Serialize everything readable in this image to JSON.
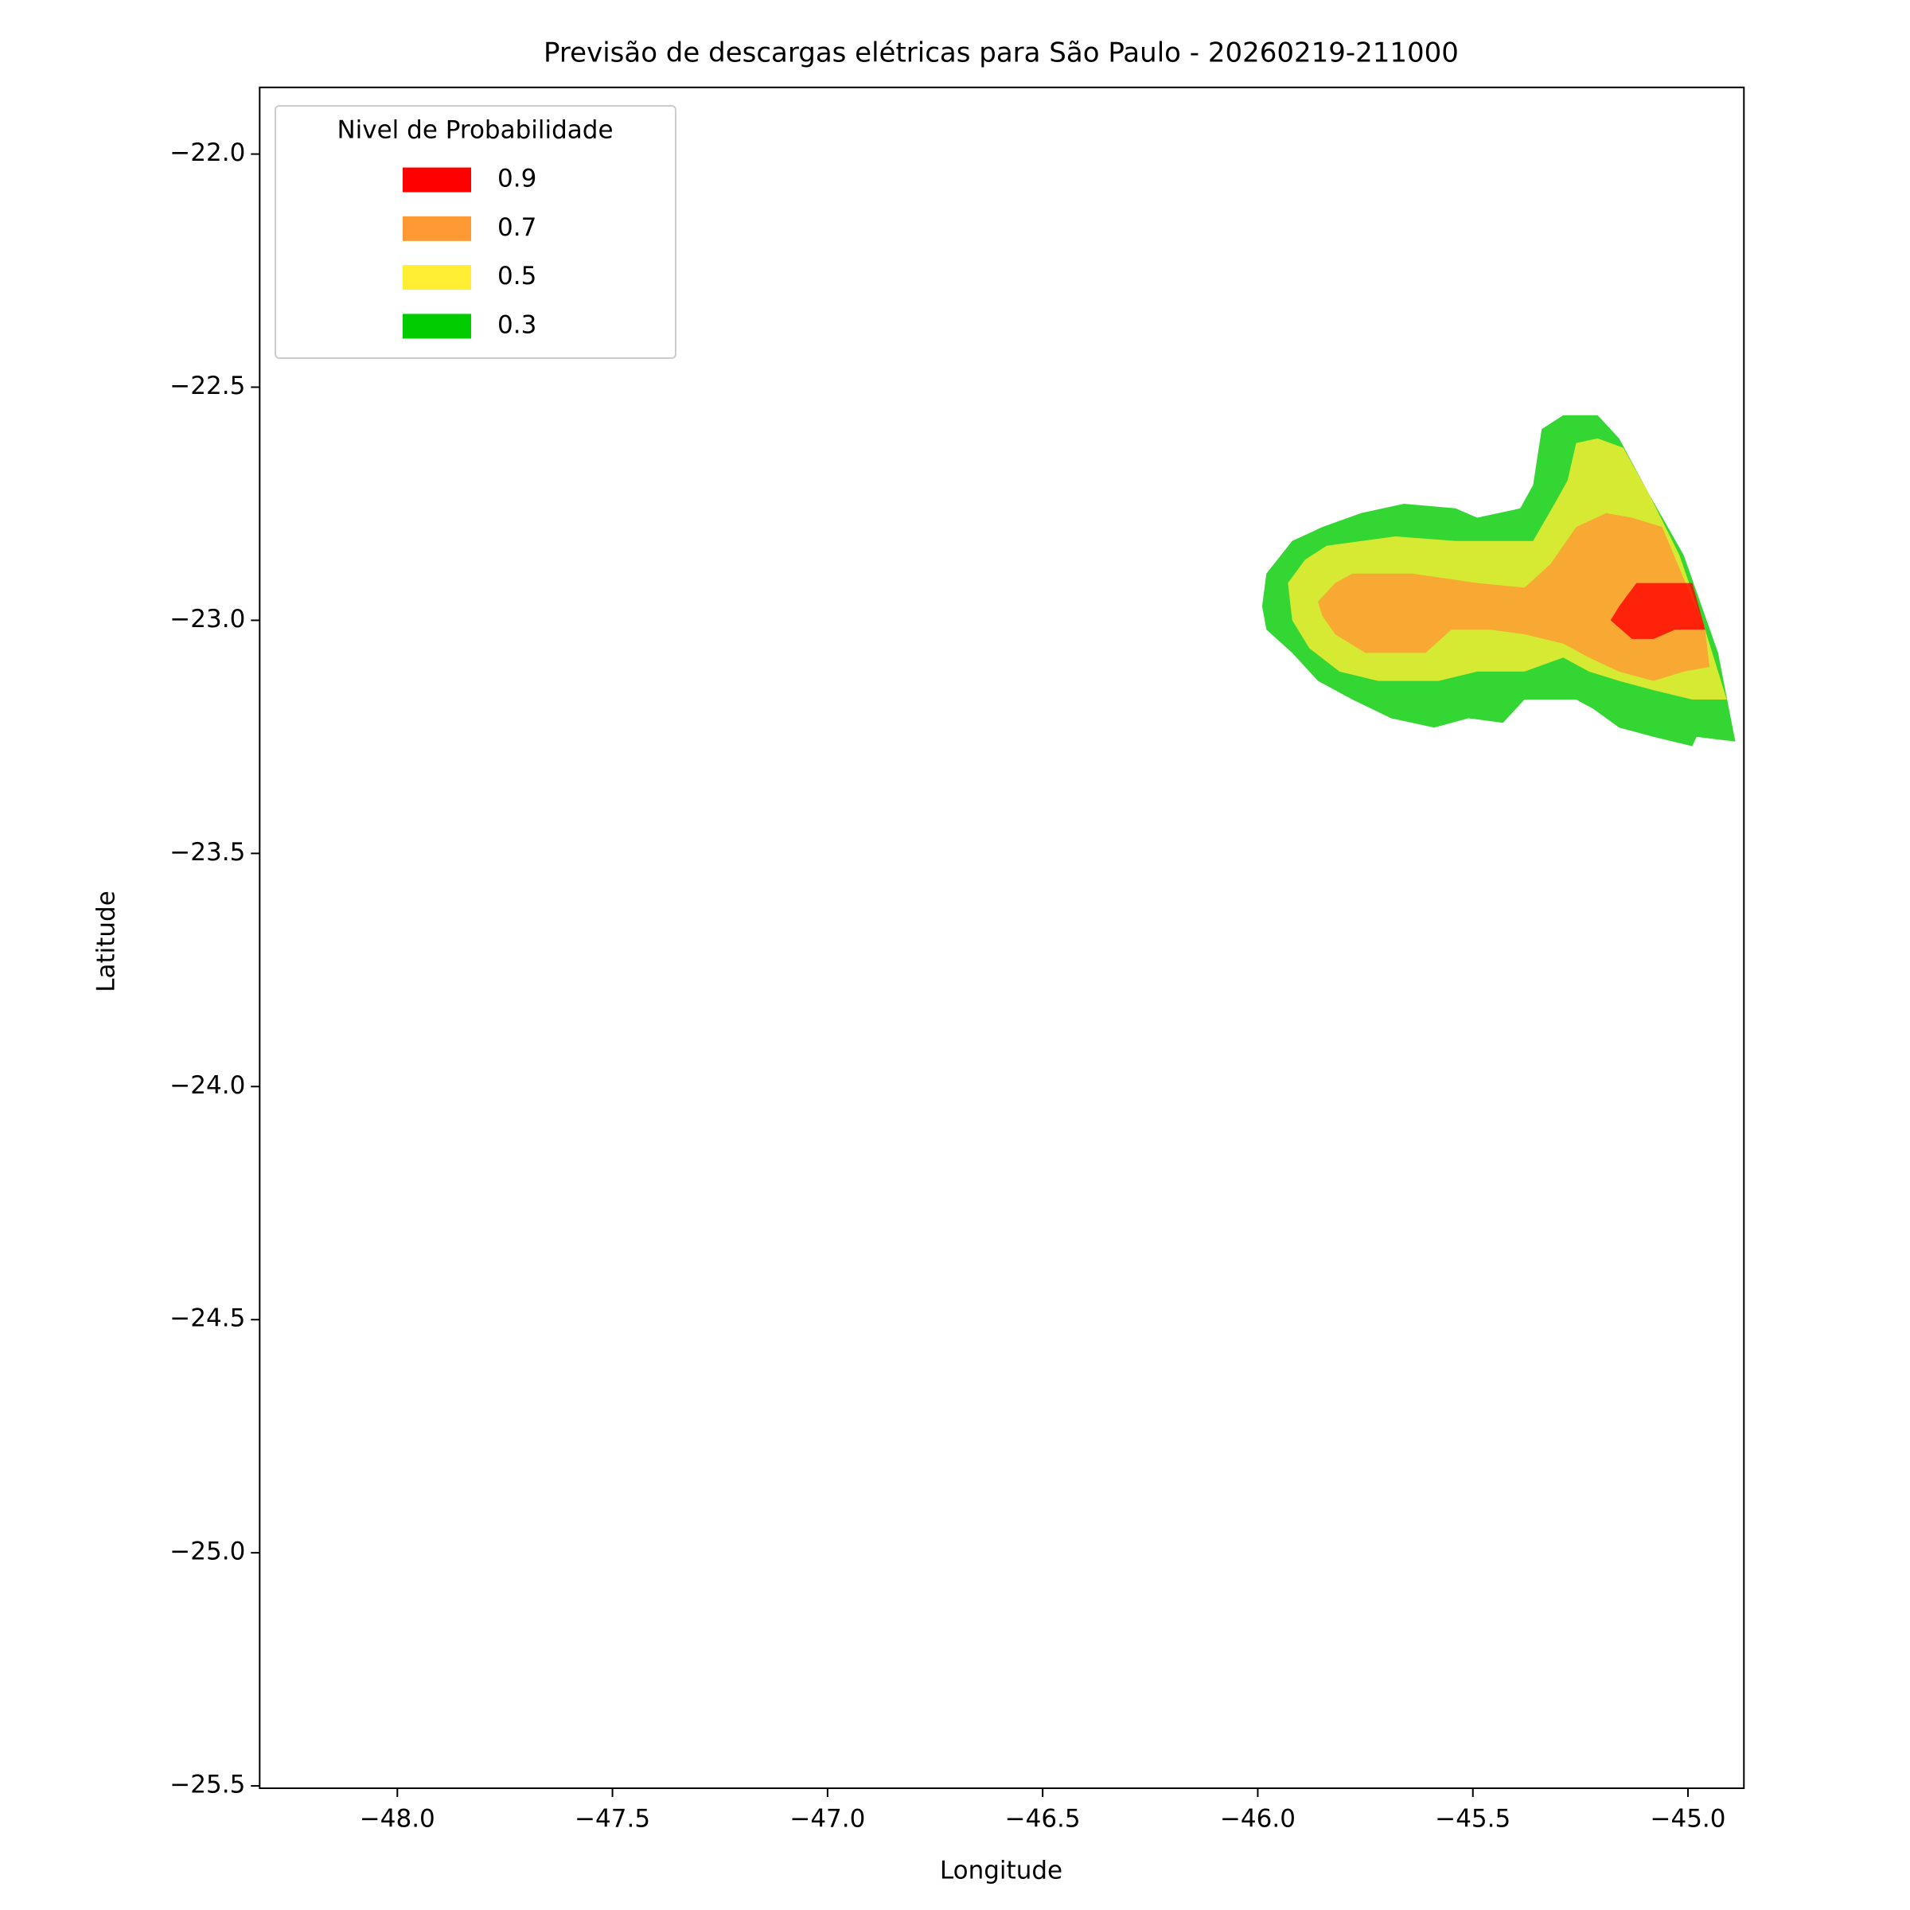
{
  "chart_data": {
    "type": "contour",
    "title": "Previsão de descargas elétricas para São Paulo - 20260219-211000",
    "xlabel": "Longitude",
    "ylabel": "Latitude",
    "legend_title": "Nivel de Probabilidade",
    "legend": "upper left",
    "alpha": 0.8,
    "xlim": [
      -48.32,
      -44.87
    ],
    "ylim": [
      -25.505,
      -21.857
    ],
    "xticks": [
      {
        "value": -48.0,
        "label": "−48.0"
      },
      {
        "value": -47.5,
        "label": "−47.5"
      },
      {
        "value": -47.0,
        "label": "−47.0"
      },
      {
        "value": -46.5,
        "label": "−46.5"
      },
      {
        "value": -46.0,
        "label": "−46.0"
      },
      {
        "value": -45.5,
        "label": "−45.5"
      },
      {
        "value": -45.0,
        "label": "−45.0"
      }
    ],
    "yticks": [
      {
        "value": -22.0,
        "label": "−22.0"
      },
      {
        "value": -22.5,
        "label": "−22.5"
      },
      {
        "value": -23.0,
        "label": "−23.0"
      },
      {
        "value": -23.5,
        "label": "−23.5"
      },
      {
        "value": -24.0,
        "label": "−24.0"
      },
      {
        "value": -24.5,
        "label": "−24.5"
      },
      {
        "value": -25.0,
        "label": "−25.0"
      },
      {
        "value": -25.5,
        "label": "−25.5"
      }
    ],
    "series": [
      {
        "name": "0.9",
        "color": "#ff0000",
        "polygon": [
          [
            -45.16,
            -22.97
          ],
          [
            -45.12,
            -22.92
          ],
          [
            -45.05,
            -22.92
          ],
          [
            -44.99,
            -22.92
          ],
          [
            -44.96,
            -23.02
          ],
          [
            -45.03,
            -23.02
          ],
          [
            -45.08,
            -23.04
          ],
          [
            -45.13,
            -23.04
          ],
          [
            -45.18,
            -23.0
          ]
        ]
      },
      {
        "name": "0.7",
        "color": "#ff9933",
        "polygon": [
          [
            -45.86,
            -22.96
          ],
          [
            -45.82,
            -22.92
          ],
          [
            -45.78,
            -22.9
          ],
          [
            -45.64,
            -22.9
          ],
          [
            -45.49,
            -22.92
          ],
          [
            -45.38,
            -22.93
          ],
          [
            -45.32,
            -22.88
          ],
          [
            -45.26,
            -22.8
          ],
          [
            -45.19,
            -22.77
          ],
          [
            -45.13,
            -22.78
          ],
          [
            -45.06,
            -22.8
          ],
          [
            -45.01,
            -22.91
          ],
          [
            -44.96,
            -23.02
          ],
          [
            -44.95,
            -23.1
          ],
          [
            -45.01,
            -23.11
          ],
          [
            -45.08,
            -23.13
          ],
          [
            -45.16,
            -23.11
          ],
          [
            -45.23,
            -23.08
          ],
          [
            -45.29,
            -23.05
          ],
          [
            -45.38,
            -23.03
          ],
          [
            -45.46,
            -23.02
          ],
          [
            -45.55,
            -23.02
          ],
          [
            -45.61,
            -23.07
          ],
          [
            -45.75,
            -23.07
          ],
          [
            -45.82,
            -23.03
          ],
          [
            -45.85,
            -22.99
          ]
        ]
      },
      {
        "name": "0.5",
        "color": "#ffee33",
        "polygon": [
          [
            -45.93,
            -22.92
          ],
          [
            -45.89,
            -22.87
          ],
          [
            -45.84,
            -22.84
          ],
          [
            -45.68,
            -22.82
          ],
          [
            -45.54,
            -22.83
          ],
          [
            -45.36,
            -22.83
          ],
          [
            -45.31,
            -22.75
          ],
          [
            -45.28,
            -22.7
          ],
          [
            -45.26,
            -22.62
          ],
          [
            -45.21,
            -22.61
          ],
          [
            -45.15,
            -22.63
          ],
          [
            -45.09,
            -22.73
          ],
          [
            -45.02,
            -22.86
          ],
          [
            -44.96,
            -23.02
          ],
          [
            -44.91,
            -23.17
          ],
          [
            -44.99,
            -23.17
          ],
          [
            -45.08,
            -23.15
          ],
          [
            -45.16,
            -23.13
          ],
          [
            -45.23,
            -23.11
          ],
          [
            -45.29,
            -23.08
          ],
          [
            -45.38,
            -23.11
          ],
          [
            -45.49,
            -23.11
          ],
          [
            -45.58,
            -23.13
          ],
          [
            -45.72,
            -23.13
          ],
          [
            -45.81,
            -23.11
          ],
          [
            -45.88,
            -23.06
          ],
          [
            -45.92,
            -23.0
          ]
        ]
      },
      {
        "name": "0.3",
        "color": "#00cc00",
        "polygon": [
          [
            -45.99,
            -22.97
          ],
          [
            -45.98,
            -22.9
          ],
          [
            -45.92,
            -22.83
          ],
          [
            -45.85,
            -22.8
          ],
          [
            -45.76,
            -22.77
          ],
          [
            -45.66,
            -22.75
          ],
          [
            -45.54,
            -22.76
          ],
          [
            -45.49,
            -22.78
          ],
          [
            -45.39,
            -22.76
          ],
          [
            -45.36,
            -22.71
          ],
          [
            -45.34,
            -22.59
          ],
          [
            -45.29,
            -22.56
          ],
          [
            -45.21,
            -22.56
          ],
          [
            -45.16,
            -22.61
          ],
          [
            -45.09,
            -22.73
          ],
          [
            -45.01,
            -22.86
          ],
          [
            -44.93,
            -23.07
          ],
          [
            -44.89,
            -23.26
          ],
          [
            -44.98,
            -23.25
          ],
          [
            -44.99,
            -23.27
          ],
          [
            -45.08,
            -23.25
          ],
          [
            -45.16,
            -23.23
          ],
          [
            -45.22,
            -23.19
          ],
          [
            -45.26,
            -23.17
          ],
          [
            -45.38,
            -23.17
          ],
          [
            -45.43,
            -23.22
          ],
          [
            -45.51,
            -23.21
          ],
          [
            -45.59,
            -23.23
          ],
          [
            -45.69,
            -23.21
          ],
          [
            -45.78,
            -23.17
          ],
          [
            -45.86,
            -23.13
          ],
          [
            -45.92,
            -23.07
          ],
          [
            -45.98,
            -23.02
          ]
        ]
      }
    ]
  }
}
